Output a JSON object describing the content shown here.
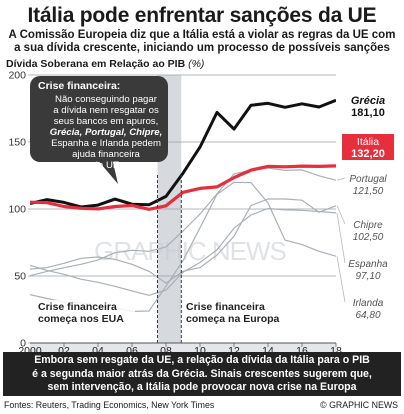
{
  "title": "Itália pode enfrentar sanções da UE",
  "subtitle_line1": "A Comissão Europeia diz que a Itália está a violar as regras da UE com",
  "subtitle_line2": "a sua dívida crescente, iniciando um processo de possíveis sanções",
  "chart_heading": "Dívida Soberana em Relação ao PIB",
  "chart_unit": "(%)",
  "watermark": "GRAPHIC NEWS",
  "colors": {
    "greece": "#111111",
    "italy": "#e62e3c",
    "other": "#aab0b8",
    "crisis_band": "#d6d9de",
    "footer_bg": "#222222"
  },
  "callout": {
    "title": "Crise financeira:",
    "lines": [
      "Não conseguindo pagar",
      "a dívida nem resgatar os",
      "seus bancos em apuros,",
      "Grécia, Portugal, Chipre,",
      "Espanha e Irlanda pedem",
      "ajuda financeira",
      "da UE"
    ]
  },
  "annotation_us": [
    "Crise financeira",
    "começa nos EUA"
  ],
  "annotation_eu": [
    "Crise financeira",
    "começa na Europa"
  ],
  "footer_lines": [
    "Embora sem resgate da UE, a relação da dívida da Itália para o PIB",
    "é a segunda maior atrás da Grécia. Sinais crescentes sugerem que,",
    "sem intervenção, a Itália pode provocar nova crise na Europa"
  ],
  "source": "Fontes: Reuters, Trading Economics, New York Times",
  "copyright": "© GRAPHIC NEWS",
  "chart_data": {
    "type": "line",
    "title": "Dívida Soberana em Relação ao PIB",
    "ylabel": "(%)",
    "xlim": [
      2000,
      2018
    ],
    "ylim": [
      0,
      200
    ],
    "y_ticks": [
      0,
      50,
      100,
      150,
      200
    ],
    "x_ticks": [
      "2000",
      "02",
      "04",
      "06",
      "08",
      "10",
      "12",
      "14",
      "16",
      "18"
    ],
    "shaded_periods": [
      [
        2007.5,
        2008.9
      ]
    ],
    "events": [
      {
        "x": 2007.5,
        "label": "Crise financeira começa nos EUA"
      },
      {
        "x": 2008.9,
        "label": "Crise financeira começa na Europa"
      }
    ],
    "x": [
      2000,
      2001,
      2002,
      2003,
      2004,
      2005,
      2006,
      2007,
      2008,
      2009,
      2010,
      2011,
      2012,
      2013,
      2014,
      2015,
      2016,
      2017,
      2018
    ],
    "series": [
      {
        "name": "Grécia",
        "end_label": "181,10",
        "values": [
          104,
          107,
          104.9,
          101.5,
          102.9,
          107.4,
          103.6,
          103.1,
          109.4,
          126.7,
          146.2,
          172.1,
          159.6,
          177.4,
          178.9,
          175.9,
          178.5,
          176.1,
          181.1
        ]
      },
      {
        "name": "Itália",
        "end_label": "132,20",
        "values": [
          105.1,
          104.7,
          101.9,
          100.5,
          100.1,
          101.9,
          102.6,
          99.8,
          102.4,
          112.5,
          115.4,
          116.5,
          123.4,
          129,
          131.8,
          131.5,
          132,
          131.8,
          132.2
        ]
      },
      {
        "name": "Portugal",
        "end_label": "121,50",
        "values": [
          50.3,
          53.4,
          56.2,
          58.7,
          62,
          67.4,
          69.2,
          68.4,
          71.7,
          83.6,
          96.2,
          111.4,
          126.2,
          129,
          130.6,
          128.8,
          129.2,
          124.8,
          121.5
        ]
      },
      {
        "name": "Chipre",
        "end_label": "102,50",
        "values": [
          55.1,
          56.3,
          59.5,
          63.2,
          64.2,
          62.4,
          58.7,
          53.5,
          44.7,
          53.5,
          56.3,
          65.7,
          79.7,
          102.6,
          107.5,
          107.5,
          106.6,
          97.5,
          102.5
        ]
      },
      {
        "name": "Espanha",
        "end_label": "97,10",
        "values": [
          58,
          54.2,
          51.3,
          47.6,
          45.3,
          42.3,
          38.9,
          35.6,
          39.5,
          52.8,
          60.1,
          69.5,
          85.7,
          95.5,
          100.4,
          99.3,
          99,
          98.1,
          97.1
        ]
      },
      {
        "name": "Irlanda",
        "end_label": "64,80",
        "values": [
          36.1,
          33.2,
          30.6,
          29.9,
          28.2,
          26.1,
          23.6,
          23.9,
          42.4,
          61.5,
          86,
          110.9,
          119.9,
          119.7,
          104.5,
          76.8,
          73.4,
          68.4,
          64.8
        ]
      }
    ]
  }
}
